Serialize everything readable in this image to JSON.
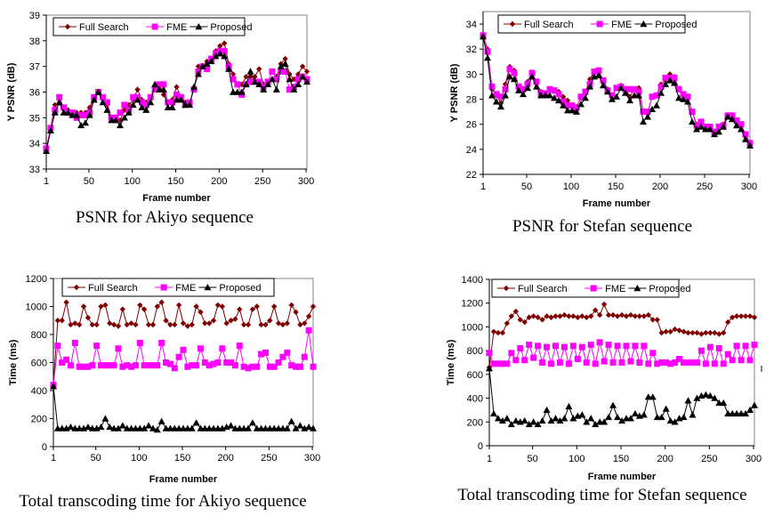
{
  "series_styles": {
    "Full Search": {
      "color": "#800000",
      "marker": "diamond"
    },
    "FME": {
      "color": "#ff00ff",
      "marker": "square"
    },
    "Proposed": {
      "color": "#000000",
      "marker": "triangle"
    }
  },
  "chart_data": [
    {
      "type": "line",
      "title": "PSNR for Akiyo sequence",
      "xlabel": "Frame number",
      "ylabel": "Y PSNR (dB)",
      "xlim": [
        1,
        301
      ],
      "ylim": [
        33,
        39
      ],
      "xticks": [
        1,
        50,
        100,
        150,
        200,
        250,
        300
      ],
      "yticks": [
        33,
        34,
        35,
        36,
        37,
        38,
        39
      ],
      "legend": "top-left",
      "grid": false,
      "x": [
        1,
        6,
        11,
        16,
        21,
        26,
        31,
        36,
        41,
        46,
        51,
        56,
        61,
        66,
        71,
        76,
        81,
        86,
        91,
        96,
        101,
        106,
        111,
        116,
        121,
        126,
        131,
        136,
        141,
        146,
        151,
        156,
        161,
        166,
        171,
        176,
        181,
        186,
        191,
        196,
        201,
        206,
        211,
        216,
        221,
        226,
        231,
        236,
        241,
        246,
        251,
        256,
        261,
        266,
        271,
        276,
        281,
        286,
        291,
        296,
        301
      ],
      "series": [
        {
          "name": "Full Search",
          "values": [
            33.8,
            34.6,
            35.5,
            35.6,
            35.4,
            35.3,
            35.2,
            35.2,
            35.2,
            35.2,
            35.4,
            35.8,
            36.0,
            35.8,
            35.5,
            35.0,
            35.0,
            34.9,
            35.3,
            35.5,
            35.7,
            36.1,
            35.7,
            35.6,
            35.8,
            36.2,
            36.3,
            35.9,
            35.6,
            35.7,
            36.2,
            35.8,
            35.6,
            35.6,
            36.1,
            37.0,
            37.0,
            37.2,
            37.3,
            37.6,
            37.8,
            37.9,
            37.1,
            36.7,
            36.3,
            36.3,
            36.6,
            36.6,
            36.6,
            36.9,
            36.3,
            36.3,
            36.5,
            36.6,
            37.1,
            37.3,
            36.7,
            36.5,
            36.7,
            37.0,
            36.8
          ]
        },
        {
          "name": "FME",
          "values": [
            33.8,
            34.6,
            35.3,
            35.8,
            35.4,
            35.2,
            35.2,
            35.0,
            35.1,
            35.1,
            35.2,
            35.8,
            36.0,
            35.8,
            35.6,
            35.0,
            35.0,
            35.2,
            35.5,
            35.3,
            35.8,
            35.8,
            35.6,
            35.5,
            35.8,
            36.1,
            36.3,
            36.3,
            35.6,
            35.6,
            35.9,
            35.8,
            35.5,
            35.6,
            36.1,
            36.8,
            37.0,
            36.9,
            37.3,
            37.5,
            37.6,
            37.6,
            37.0,
            36.5,
            36.3,
            35.9,
            36.3,
            36.4,
            36.4,
            36.4,
            36.2,
            36.4,
            36.8,
            36.5,
            36.8,
            36.8,
            36.1,
            36.2,
            36.5,
            36.6,
            36.5
          ]
        },
        {
          "name": "Proposed",
          "values": [
            33.7,
            34.5,
            35.2,
            35.6,
            35.2,
            35.2,
            35.1,
            35.1,
            34.7,
            34.8,
            35.1,
            35.7,
            36.0,
            35.6,
            35.3,
            34.9,
            34.9,
            34.7,
            35.0,
            35.2,
            35.5,
            35.7,
            35.4,
            35.3,
            35.6,
            36.3,
            36.1,
            36.1,
            35.4,
            35.4,
            35.7,
            35.7,
            35.5,
            35.5,
            36.2,
            36.7,
            37.0,
            37.1,
            37.2,
            37.4,
            37.5,
            37.4,
            36.9,
            36.0,
            36.0,
            36.0,
            36.3,
            36.8,
            36.4,
            36.3,
            36.1,
            36.3,
            36.5,
            36.1,
            37.0,
            37.1,
            36.5,
            36.1,
            36.3,
            36.6,
            36.4
          ]
        }
      ]
    },
    {
      "type": "line",
      "title": "PSNR for Stefan sequence",
      "xlabel": "Frame number",
      "ylabel": "Y PSNR (dB)",
      "xlim": [
        1,
        301
      ],
      "ylim": [
        22,
        35
      ],
      "xticks": [
        1,
        50,
        100,
        150,
        200,
        250,
        300
      ],
      "yticks": [
        22,
        24,
        26,
        28,
        30,
        32,
        34
      ],
      "legend": "top-center",
      "grid": false,
      "x": [
        1,
        6,
        11,
        16,
        21,
        26,
        31,
        36,
        41,
        46,
        51,
        56,
        61,
        66,
        71,
        76,
        81,
        86,
        91,
        96,
        101,
        106,
        111,
        116,
        121,
        126,
        131,
        136,
        141,
        146,
        151,
        156,
        161,
        166,
        171,
        176,
        181,
        186,
        191,
        196,
        201,
        206,
        211,
        216,
        221,
        226,
        231,
        236,
        241,
        246,
        251,
        256,
        261,
        266,
        271,
        276,
        281,
        286,
        291,
        296,
        301
      ],
      "series": [
        {
          "name": "Full Search",
          "values": [
            33.1,
            32.0,
            28.8,
            28.3,
            27.7,
            29.2,
            30.6,
            30.3,
            29.0,
            28.8,
            29.4,
            30.1,
            29.3,
            28.6,
            28.5,
            28.7,
            28.7,
            28.6,
            28.2,
            27.9,
            27.4,
            27.4,
            28.1,
            28.5,
            29.6,
            30.2,
            30.3,
            29.5,
            28.8,
            28.3,
            28.9,
            29.1,
            28.8,
            28.2,
            28.8,
            28.9,
            27.0,
            26.9,
            28.2,
            28.3,
            29.2,
            29.5,
            30.0,
            29.8,
            28.8,
            28.4,
            28.0,
            27.0,
            26.0,
            26.2,
            25.8,
            25.6,
            25.4,
            25.7,
            26.0,
            26.7,
            26.7,
            26.3,
            26.0,
            25.0,
            24.5
          ]
        },
        {
          "name": "FME",
          "values": [
            33.1,
            31.8,
            29.0,
            28.4,
            28.2,
            28.8,
            30.4,
            30.1,
            29.0,
            28.8,
            29.2,
            30.1,
            29.4,
            28.5,
            28.4,
            28.8,
            28.7,
            28.4,
            27.8,
            27.5,
            27.5,
            27.3,
            28.2,
            28.6,
            29.2,
            30.2,
            30.3,
            29.5,
            28.7,
            28.3,
            28.9,
            29.0,
            28.8,
            28.8,
            28.8,
            28.6,
            27.0,
            27.0,
            28.2,
            28.3,
            29.0,
            29.7,
            29.7,
            29.7,
            28.8,
            28.4,
            28.2,
            27.0,
            25.9,
            26.2,
            25.8,
            25.8,
            25.4,
            25.8,
            25.9,
            26.7,
            26.7,
            26.3,
            26.0,
            25.2,
            24.5
          ]
        },
        {
          "name": "Proposed",
          "values": [
            33.0,
            31.3,
            28.3,
            27.8,
            27.4,
            28.3,
            29.8,
            29.6,
            28.7,
            28.4,
            28.9,
            29.8,
            29.0,
            28.3,
            28.3,
            28.3,
            28.1,
            27.9,
            27.5,
            27.1,
            27.1,
            27.0,
            27.6,
            28.1,
            29.0,
            29.8,
            29.9,
            29.1,
            28.6,
            28.0,
            28.2,
            28.9,
            28.5,
            27.9,
            28.3,
            28.3,
            26.2,
            26.6,
            27.2,
            27.5,
            28.5,
            29.2,
            29.5,
            29.3,
            28.1,
            28.0,
            27.8,
            26.2,
            25.6,
            25.8,
            25.6,
            25.6,
            25.2,
            25.4,
            25.8,
            26.6,
            26.4,
            25.9,
            25.6,
            24.8,
            24.3
          ]
        }
      ]
    },
    {
      "type": "line",
      "title": "Total transcoding time for Akiyo sequence",
      "xlabel": "Frame number",
      "ylabel": "Time (ms)",
      "xlim": [
        1,
        301
      ],
      "ylim": [
        0,
        1200
      ],
      "xticks": [
        1,
        50,
        100,
        150,
        200,
        250,
        300
      ],
      "yticks": [
        0,
        200,
        400,
        600,
        800,
        1000,
        1200
      ],
      "legend": "top-center",
      "grid": false,
      "x": [
        1,
        6,
        11,
        16,
        21,
        26,
        31,
        36,
        41,
        46,
        51,
        56,
        61,
        66,
        71,
        76,
        81,
        86,
        91,
        96,
        101,
        106,
        111,
        116,
        121,
        126,
        131,
        136,
        141,
        146,
        151,
        156,
        161,
        166,
        171,
        176,
        181,
        186,
        191,
        196,
        201,
        206,
        211,
        216,
        221,
        226,
        231,
        236,
        241,
        246,
        251,
        256,
        261,
        266,
        271,
        276,
        281,
        286,
        291,
        296,
        301
      ],
      "series": [
        {
          "name": "Full Search",
          "values": [
            440,
            900,
            900,
            1030,
            870,
            880,
            870,
            1000,
            920,
            870,
            870,
            1000,
            1010,
            880,
            870,
            860,
            980,
            870,
            880,
            870,
            1010,
            980,
            870,
            870,
            1000,
            1030,
            900,
            870,
            870,
            1010,
            880,
            860,
            870,
            1000,
            960,
            880,
            880,
            900,
            1010,
            1000,
            880,
            900,
            910,
            980,
            870,
            870,
            980,
            1000,
            870,
            870,
            900,
            1000,
            880,
            870,
            880,
            1010,
            960,
            870,
            880,
            930,
            1000
          ]
        },
        {
          "name": "FME",
          "values": [
            440,
            720,
            600,
            620,
            580,
            740,
            570,
            570,
            570,
            580,
            720,
            580,
            580,
            580,
            580,
            700,
            570,
            580,
            570,
            580,
            740,
            580,
            580,
            580,
            580,
            740,
            600,
            590,
            560,
            640,
            690,
            570,
            580,
            580,
            700,
            600,
            580,
            590,
            600,
            700,
            600,
            600,
            580,
            720,
            570,
            560,
            570,
            570,
            660,
            670,
            570,
            570,
            600,
            640,
            670,
            580,
            570,
            570,
            640,
            830,
            570
          ]
        },
        {
          "name": "Proposed",
          "values": [
            430,
            130,
            130,
            130,
            140,
            130,
            130,
            130,
            140,
            130,
            130,
            140,
            200,
            140,
            130,
            130,
            150,
            130,
            130,
            130,
            130,
            130,
            150,
            130,
            120,
            180,
            130,
            130,
            130,
            130,
            130,
            130,
            130,
            170,
            130,
            130,
            130,
            130,
            130,
            130,
            140,
            150,
            130,
            130,
            130,
            130,
            170,
            130,
            130,
            130,
            130,
            130,
            130,
            130,
            130,
            180,
            130,
            150,
            130,
            140,
            130
          ]
        }
      ]
    },
    {
      "type": "line",
      "title": "Total transcoding time for Stefan sequence",
      "xlabel": "Frame number",
      "ylabel": "Time (ms)",
      "xlim": [
        1,
        301
      ],
      "ylim": [
        0,
        1400
      ],
      "xticks": [
        1,
        50,
        100,
        150,
        200,
        250,
        300
      ],
      "yticks": [
        0,
        200,
        400,
        600,
        800,
        1000,
        1200,
        1400
      ],
      "legend": "top-center",
      "grid": false,
      "x": [
        1,
        6,
        11,
        16,
        21,
        26,
        31,
        36,
        41,
        46,
        51,
        56,
        61,
        66,
        71,
        76,
        81,
        86,
        91,
        96,
        101,
        106,
        111,
        116,
        121,
        126,
        131,
        136,
        141,
        146,
        151,
        156,
        161,
        166,
        171,
        176,
        181,
        186,
        191,
        196,
        201,
        206,
        211,
        216,
        221,
        226,
        231,
        236,
        241,
        246,
        251,
        256,
        261,
        266,
        271,
        276,
        281,
        286,
        291,
        296,
        301
      ],
      "series": [
        {
          "name": "Full Search",
          "values": [
            660,
            960,
            950,
            950,
            1030,
            1090,
            1130,
            1060,
            1040,
            1080,
            1090,
            1080,
            1060,
            1090,
            1080,
            1090,
            1090,
            1100,
            1090,
            1090,
            1080,
            1090,
            1080,
            1090,
            1140,
            1100,
            1190,
            1100,
            1100,
            1090,
            1100,
            1090,
            1100,
            1090,
            1090,
            1090,
            1100,
            1060,
            1060,
            950,
            960,
            960,
            980,
            970,
            960,
            950,
            950,
            950,
            940,
            950,
            950,
            950,
            940,
            950,
            1040,
            1080,
            1090,
            1090,
            1090,
            1090,
            1080
          ]
        },
        {
          "name": "FME",
          "values": [
            780,
            690,
            690,
            690,
            690,
            780,
            720,
            820,
            720,
            850,
            740,
            840,
            700,
            830,
            690,
            840,
            700,
            830,
            690,
            840,
            730,
            830,
            700,
            850,
            690,
            870,
            710,
            850,
            700,
            840,
            700,
            840,
            710,
            840,
            700,
            840,
            690,
            780,
            690,
            700,
            700,
            690,
            700,
            730,
            700,
            700,
            700,
            700,
            800,
            690,
            830,
            690,
            820,
            690,
            770,
            720,
            840,
            720,
            840,
            720,
            850
          ]
        },
        {
          "name": "Proposed",
          "values": [
            650,
            270,
            230,
            210,
            230,
            180,
            210,
            200,
            210,
            180,
            200,
            180,
            210,
            300,
            210,
            230,
            210,
            230,
            330,
            230,
            250,
            260,
            200,
            230,
            180,
            200,
            200,
            240,
            340,
            240,
            210,
            230,
            230,
            270,
            250,
            260,
            410,
            410,
            240,
            240,
            310,
            210,
            200,
            230,
            240,
            380,
            260,
            400,
            420,
            430,
            420,
            400,
            360,
            360,
            270,
            270,
            270,
            270,
            270,
            300,
            340
          ]
        }
      ]
    }
  ]
}
